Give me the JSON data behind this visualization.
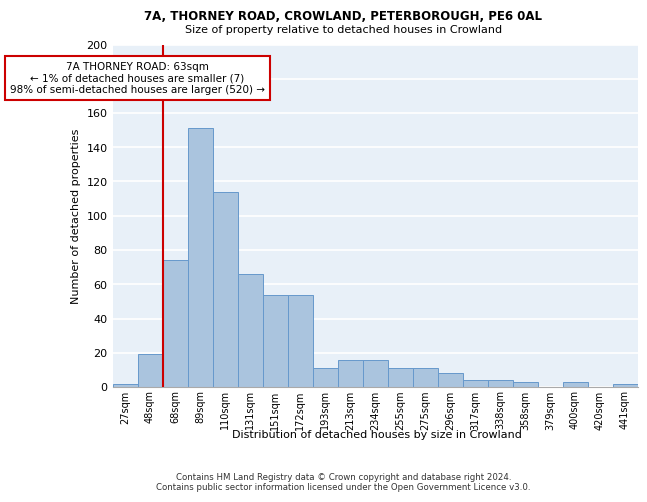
{
  "title1": "7A, THORNEY ROAD, CROWLAND, PETERBOROUGH, PE6 0AL",
  "title2": "Size of property relative to detached houses in Crowland",
  "xlabel": "Distribution of detached houses by size in Crowland",
  "ylabel": "Number of detached properties",
  "categories": [
    "27sqm",
    "48sqm",
    "68sqm",
    "89sqm",
    "110sqm",
    "131sqm",
    "151sqm",
    "172sqm",
    "193sqm",
    "213sqm",
    "234sqm",
    "255sqm",
    "275sqm",
    "296sqm",
    "317sqm",
    "338sqm",
    "358sqm",
    "379sqm",
    "400sqm",
    "420sqm",
    "441sqm"
  ],
  "values": [
    2,
    19,
    74,
    151,
    114,
    66,
    54,
    54,
    11,
    16,
    16,
    11,
    11,
    8,
    4,
    4,
    3,
    0,
    3,
    0,
    2
  ],
  "bar_color": "#aac4de",
  "bar_edge_color": "#6699cc",
  "vline_x_index": 1.5,
  "vline_color": "#cc0000",
  "annotation_text": "7A THORNEY ROAD: 63sqm\n← 1% of detached houses are smaller (7)\n98% of semi-detached houses are larger (520) →",
  "annotation_box_color": "#ffffff",
  "annotation_box_edge_color": "#cc0000",
  "ylim": [
    0,
    200
  ],
  "yticks": [
    0,
    20,
    40,
    60,
    80,
    100,
    120,
    140,
    160,
    180,
    200
  ],
  "bg_color": "#e8f0f8",
  "grid_color": "#ffffff",
  "footer1": "Contains HM Land Registry data © Crown copyright and database right 2024.",
  "footer2": "Contains public sector information licensed under the Open Government Licence v3.0."
}
